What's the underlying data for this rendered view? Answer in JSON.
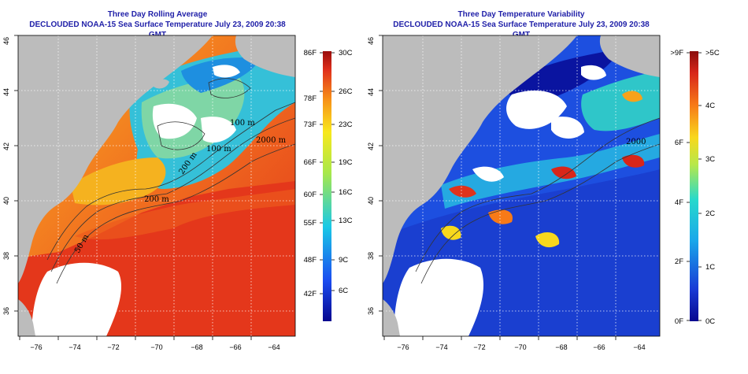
{
  "left_panel": {
    "title_line1": "Three Day Rolling Average",
    "title_line2": "DECLOUDED NOAA-15 Sea Surface Temperature July 23, 2009 20:38 GMT",
    "colorbar_f": [
      "86F",
      "78F",
      "73F",
      "66F",
      "60F",
      "55F",
      "48F",
      "42F"
    ],
    "colorbar_c": [
      "30C",
      "26C",
      "23C",
      "19C",
      "16C",
      "13C",
      "9C",
      "6C"
    ],
    "contours": [
      "100 m",
      "2000 m",
      "100 m",
      "200 m",
      "200 m",
      "50 m"
    ]
  },
  "right_panel": {
    "title_line1": "Three Day Temperature Variability",
    "title_line2": "DECLOUDED NOAA-15 Sea Surface Temperature July 23, 2009 20:38 GMT",
    "colorbar_f": [
      ">9F",
      "6F",
      "4F",
      "2F",
      "0F"
    ],
    "colorbar_c": [
      ">5C",
      "4C",
      "3C",
      "2C",
      "1C",
      "0C"
    ],
    "contours": [
      "2000"
    ]
  },
  "axes": {
    "lon_ticks": [
      "−76",
      "−74",
      "−72",
      "−70",
      "−68",
      "−66",
      "−64"
    ],
    "lat_ticks": [
      "46",
      "44",
      "42",
      "40",
      "38",
      "36"
    ]
  },
  "colors": {
    "title": "#1f1fa8",
    "land": "#bcbcbc",
    "no_data": "#ffffff",
    "sst_warm": "#e8321c",
    "sst_mid": "#f7a21b",
    "sst_cool": "#35c0d8",
    "var_low": "#1d3fd8",
    "var_high": "#d9261a"
  }
}
